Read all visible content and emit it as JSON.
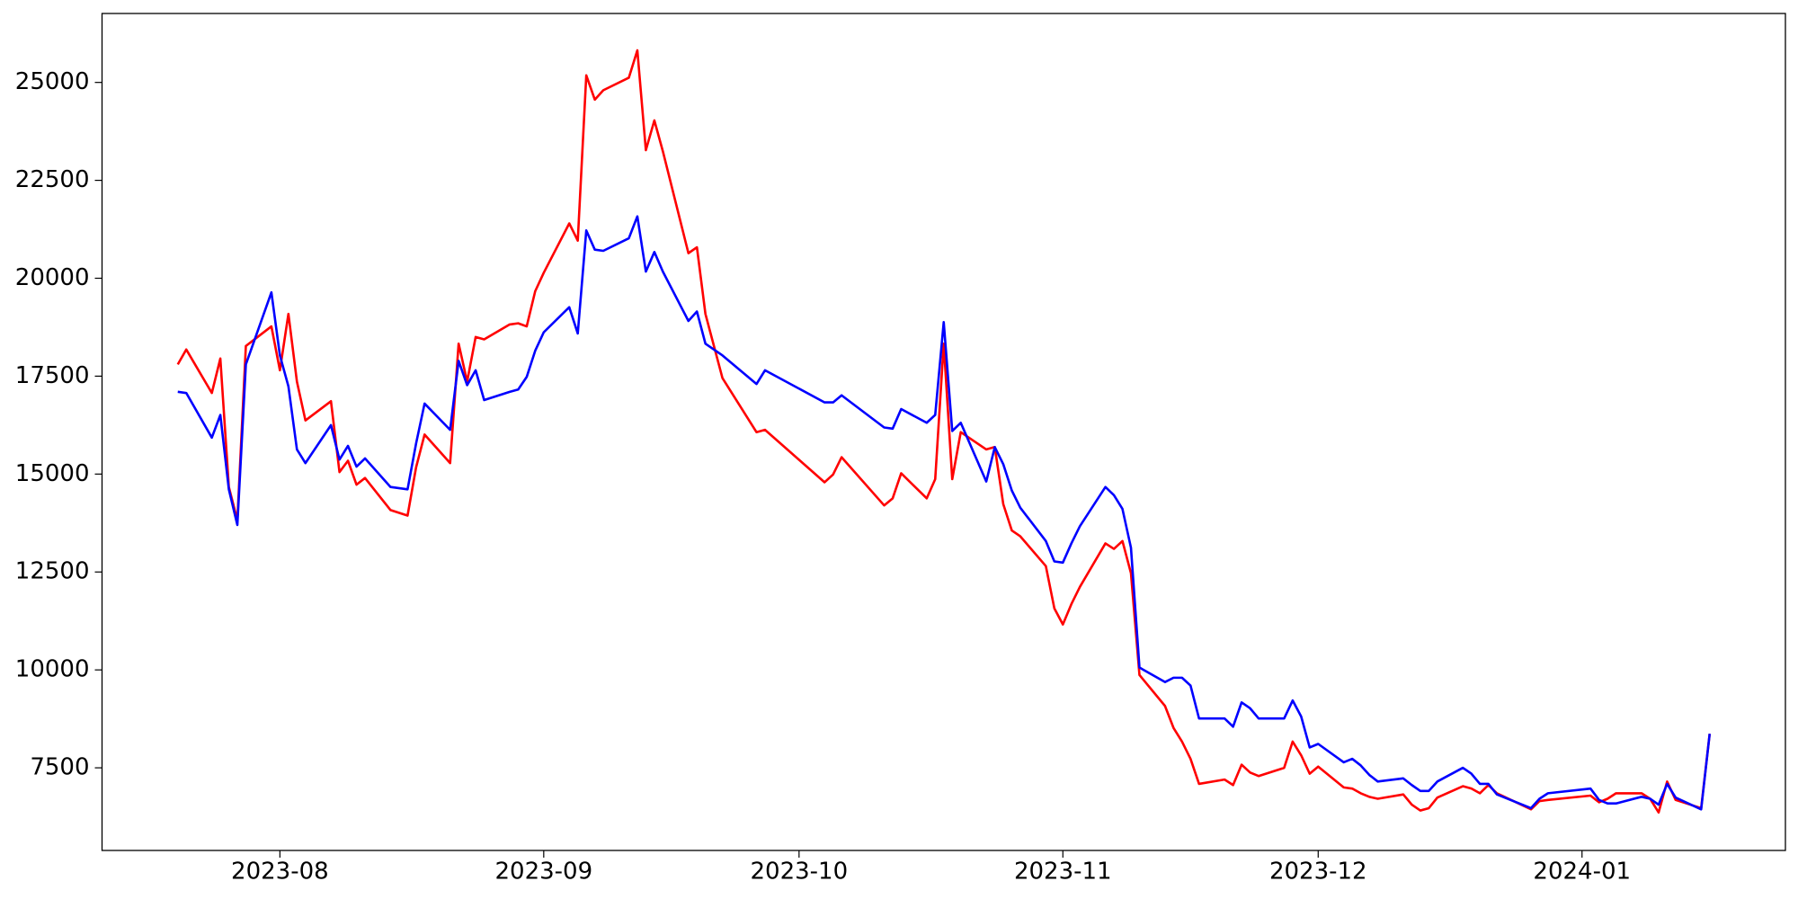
{
  "chart_data": {
    "type": "line",
    "x": [
      -12,
      -11,
      -8,
      -7,
      -6,
      -5,
      -4,
      -1,
      0,
      1,
      2,
      3,
      6,
      7,
      8,
      9,
      10,
      13,
      15,
      16,
      17,
      20,
      21,
      22,
      23,
      24,
      27,
      28,
      29,
      30,
      31,
      34,
      35,
      36,
      37,
      38,
      41,
      42,
      43,
      44,
      45,
      48,
      49,
      50,
      52,
      56,
      57,
      64,
      65,
      66,
      71,
      72,
      73,
      76,
      77,
      78,
      79,
      80,
      83,
      84,
      85,
      86,
      87,
      90,
      91,
      92,
      93,
      94,
      97,
      98,
      99,
      100,
      101,
      104,
      105,
      106,
      107,
      108,
      111,
      112,
      113,
      114,
      115,
      118,
      119,
      120,
      121,
      122,
      125,
      126,
      127,
      128,
      129,
      132,
      133,
      134,
      135,
      136,
      139,
      140,
      141,
      142,
      143,
      147,
      148,
      149,
      154,
      155,
      156,
      157,
      160,
      161,
      162,
      163,
      164,
      167,
      168
    ],
    "series": [
      {
        "color": "#ff0000",
        "values": [
          17800,
          18180,
          17070,
          17950,
          14670,
          13820,
          18270,
          18770,
          17650,
          19090,
          17360,
          16370,
          16860,
          15050,
          15340,
          14730,
          14900,
          14080,
          13940,
          15170,
          16010,
          15280,
          18330,
          17360,
          18500,
          18440,
          18820,
          18850,
          18770,
          19670,
          20140,
          21400,
          20960,
          25180,
          24560,
          24800,
          25120,
          25820,
          23270,
          24030,
          23240,
          20640,
          20790,
          19090,
          17450,
          16070,
          16130,
          14790,
          14990,
          15430,
          14200,
          14380,
          15020,
          14380,
          14870,
          18330,
          14870,
          16070,
          15630,
          15690,
          14230,
          13560,
          13410,
          12650,
          11570,
          11160,
          11680,
          12120,
          13230,
          13090,
          13290,
          12470,
          9870,
          9080,
          8520,
          8170,
          7730,
          7090,
          7200,
          7060,
          7580,
          7380,
          7290,
          7500,
          8170,
          7820,
          7350,
          7530,
          7000,
          6970,
          6850,
          6760,
          6710,
          6820,
          6560,
          6410,
          6470,
          6740,
          7030,
          6970,
          6850,
          7060,
          6850,
          6440,
          6650,
          6680,
          6790,
          6620,
          6710,
          6850,
          6850,
          6710,
          6360,
          7150,
          6680,
          6470,
          8370
        ]
      },
      {
        "color": "#0000ff",
        "values": [
          17100,
          17070,
          15930,
          16510,
          14610,
          13700,
          17800,
          19640,
          18030,
          17240,
          15630,
          15280,
          16250,
          15370,
          15720,
          15190,
          15400,
          14670,
          14610,
          15780,
          16800,
          16130,
          17890,
          17270,
          17650,
          16890,
          17100,
          17160,
          17480,
          18150,
          18620,
          19260,
          18590,
          21220,
          20730,
          20700,
          21020,
          21580,
          20170,
          20670,
          20170,
          18910,
          19150,
          18330,
          18030,
          17300,
          17650,
          16830,
          16830,
          17010,
          16190,
          16160,
          16660,
          16310,
          16510,
          18880,
          16100,
          16310,
          14810,
          15690,
          15250,
          14580,
          14140,
          13290,
          12770,
          12740,
          13230,
          13670,
          14670,
          14460,
          14110,
          13120,
          10060,
          9690,
          9800,
          9800,
          9600,
          8760,
          8760,
          8550,
          9170,
          9020,
          8760,
          8760,
          9220,
          8810,
          8020,
          8110,
          7640,
          7730,
          7560,
          7320,
          7150,
          7230,
          7060,
          6910,
          6910,
          7150,
          7500,
          7350,
          7090,
          7090,
          6820,
          6470,
          6710,
          6850,
          6970,
          6680,
          6590,
          6590,
          6760,
          6710,
          6560,
          7090,
          6740,
          6440,
          8370
        ]
      }
    ],
    "xlim": [
      -20.9,
      176.9
    ],
    "xticks": [
      {
        "value": 0,
        "label": "2023-08"
      },
      {
        "value": 31,
        "label": "2023-09"
      },
      {
        "value": 61,
        "label": "2023-10"
      },
      {
        "value": 92,
        "label": "2023-11"
      },
      {
        "value": 122,
        "label": "2023-12"
      },
      {
        "value": 153,
        "label": "2024-01"
      }
    ],
    "ylim": [
      5390,
      26760
    ],
    "yticks": [
      7500,
      10000,
      12500,
      15000,
      17500,
      20000,
      22500,
      25000
    ],
    "grid": false
  }
}
